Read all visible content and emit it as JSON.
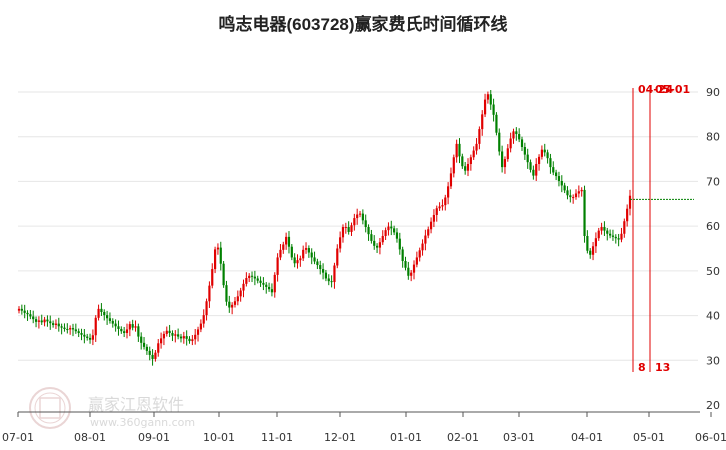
{
  "chart_data": {
    "type": "candlestick",
    "title": "鸣志电器(603728)赢家费氏时间循环线",
    "xlabel": "",
    "ylabel": "",
    "ylim": [
      20,
      95
    ],
    "y_ticks": [
      "20",
      "30",
      "40",
      "50",
      "60",
      "70",
      "80",
      "90"
    ],
    "x_ticks": [
      "07-01",
      "08-01",
      "09-01",
      "10-01",
      "11-01",
      "12-01",
      "01-01",
      "02-01",
      "03-01",
      "04-01",
      "05-01",
      "06-01"
    ],
    "grid": "horizontal",
    "up_color": "#e00000",
    "down_color": "#008000",
    "reference_level": 66,
    "fib_lines": [
      {
        "date_label": "04-24",
        "bottom_label": "8"
      },
      {
        "date_label": "05-01",
        "bottom_label": "13"
      }
    ],
    "series": [
      {
        "close": [
          41.5,
          41.1,
          40.6,
          40.3,
          39.8,
          39.2,
          38.6,
          38.9,
          38.5,
          39.1,
          38.7,
          38.3,
          37.9,
          38.2,
          37.6,
          37.3,
          37.0,
          36.9,
          37.2,
          36.9,
          36.5,
          36.1,
          35.7,
          35.3,
          35.0,
          34.6,
          35.6,
          39.5,
          41.5,
          40.8,
          40.1,
          39.4,
          38.8,
          38.2,
          37.6,
          37.0,
          36.5,
          36.1,
          36.9,
          38.1,
          37.3,
          37.6,
          35.3,
          33.9,
          33.0,
          32.1,
          31.2,
          30.3,
          31.7,
          33.8,
          34.9,
          35.9,
          36.6,
          36.1,
          35.5,
          35.8,
          35.3,
          34.9,
          35.4,
          34.8,
          34.3,
          34.7,
          35.7,
          36.9,
          38.2,
          40.1,
          43.2,
          46.7,
          50.4,
          54.8,
          55.2,
          51.6,
          46.8,
          43.1,
          41.8,
          42.4,
          43.2,
          44.3,
          45.6,
          47.1,
          48.4,
          48.9,
          48.7,
          48.3,
          47.8,
          47.3,
          46.9,
          46.4,
          45.9,
          45.2,
          49.1,
          53.0,
          54.7,
          55.9,
          57.6,
          55.4,
          53.0,
          51.7,
          52.4,
          52.8,
          54.7,
          55.1,
          54.1,
          53.0,
          52.1,
          51.3,
          50.4,
          49.6,
          48.3,
          47.7,
          47.5,
          51.2,
          55.0,
          57.5,
          59.8,
          59.8,
          58.7,
          60.2,
          61.8,
          62.6,
          62.8,
          61.3,
          59.8,
          58.2,
          56.7,
          55.6,
          55.2,
          56.4,
          57.8,
          59.1,
          59.9,
          59.5,
          58.6,
          57.2,
          54.8,
          52.2,
          50.7,
          48.9,
          49.6,
          51.4,
          53.0,
          54.6,
          56.1,
          57.9,
          59.3,
          61.0,
          62.5,
          64.0,
          64.4,
          64.7,
          66.4,
          68.9,
          71.8,
          75.4,
          78.4,
          75.6,
          73.4,
          72.4,
          73.9,
          75.4,
          76.9,
          78.4,
          81.7,
          85.0,
          88.3,
          89.5,
          87.2,
          84.9,
          80.9,
          76.7,
          73.2,
          75.0,
          77.4,
          79.6,
          81.2,
          80.6,
          79.4,
          77.7,
          76.0,
          74.3,
          72.6,
          71.3,
          73.9,
          75.5,
          77.1,
          76.5,
          75.2,
          73.2,
          72.0,
          71.2,
          70.1,
          69.1,
          68.0,
          66.9,
          66.5,
          66.5,
          67.3,
          67.8,
          68.1,
          57.8,
          54.5,
          53.6,
          55.5,
          57.3,
          59.0,
          59.8,
          59.0,
          58.3,
          57.9,
          57.6,
          57.3,
          57.0,
          58.3,
          61.1,
          63.9,
          66.8
        ]
      }
    ]
  }
}
